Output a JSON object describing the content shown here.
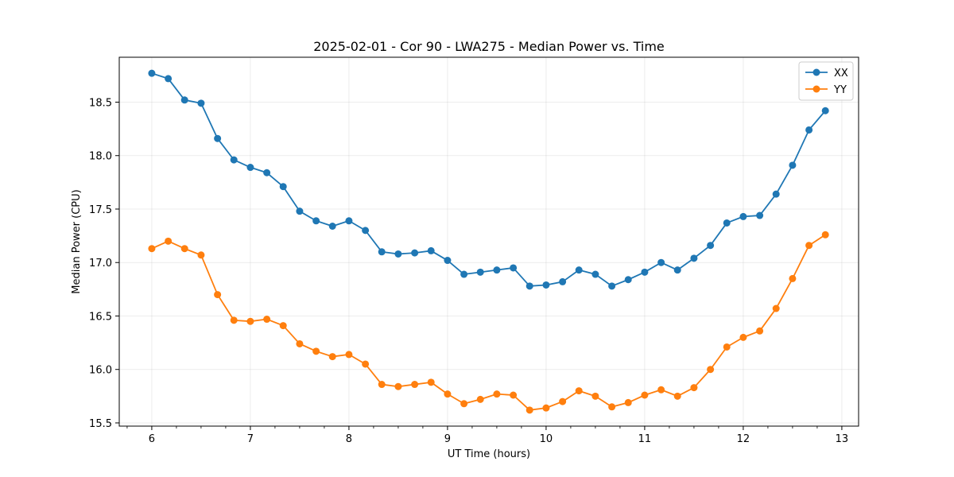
{
  "chart_data": {
    "type": "line",
    "title": "2025-02-01 - Cor 90 - LWA275 - Median Power vs. Time",
    "xlabel": "UT Time (hours)",
    "ylabel": "Median Power (CPU)",
    "xlim": [
      5.67,
      13.17
    ],
    "ylim": [
      15.47,
      18.92
    ],
    "xticks": [
      6,
      7,
      8,
      9,
      10,
      11,
      12,
      13
    ],
    "yticks": [
      15.5,
      16.0,
      16.5,
      17.0,
      17.5,
      18.0,
      18.5
    ],
    "xtick_labels": [
      "6",
      "7",
      "8",
      "9",
      "10",
      "11",
      "12",
      "13"
    ],
    "ytick_labels": [
      "15.5",
      "16.0",
      "16.5",
      "17.0",
      "17.5",
      "18.0",
      "18.5"
    ],
    "grid": true,
    "legend_position": "top-right",
    "x": [
      6.0,
      6.167,
      6.333,
      6.5,
      6.667,
      6.833,
      7.0,
      7.167,
      7.333,
      7.5,
      7.667,
      7.833,
      8.0,
      8.167,
      8.333,
      8.5,
      8.667,
      8.833,
      9.0,
      9.167,
      9.333,
      9.5,
      9.667,
      9.833,
      10.0,
      10.167,
      10.333,
      10.5,
      10.667,
      10.833,
      11.0,
      11.167,
      11.333,
      11.5,
      11.667,
      11.833,
      12.0,
      12.167,
      12.333,
      12.5,
      12.667,
      12.833
    ],
    "series": [
      {
        "name": "XX",
        "color": "#1f77b4",
        "values": [
          18.77,
          18.72,
          18.52,
          18.49,
          18.16,
          17.96,
          17.89,
          17.84,
          17.71,
          17.48,
          17.39,
          17.34,
          17.39,
          17.3,
          17.1,
          17.08,
          17.09,
          17.11,
          17.02,
          16.89,
          16.91,
          16.93,
          16.95,
          16.78,
          16.79,
          16.82,
          16.93,
          16.89,
          16.78,
          16.84,
          16.91,
          17.0,
          16.93,
          17.04,
          17.16,
          17.37,
          17.43,
          17.44,
          17.64,
          17.91,
          18.24,
          18.42
        ]
      },
      {
        "name": "YY",
        "color": "#ff7f0e",
        "values": [
          17.13,
          17.2,
          17.13,
          17.07,
          16.7,
          16.46,
          16.45,
          16.47,
          16.41,
          16.24,
          16.17,
          16.12,
          16.14,
          16.05,
          15.86,
          15.84,
          15.86,
          15.88,
          15.77,
          15.68,
          15.72,
          15.77,
          15.76,
          15.62,
          15.64,
          15.7,
          15.8,
          15.75,
          15.65,
          15.69,
          15.76,
          15.81,
          15.75,
          15.83,
          16.0,
          16.21,
          16.3,
          16.36,
          16.57,
          16.85,
          17.16,
          17.26
        ]
      }
    ]
  }
}
